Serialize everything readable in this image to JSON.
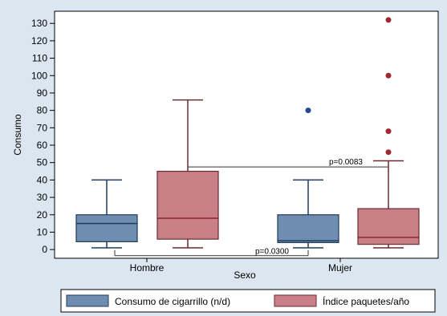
{
  "chart_data": {
    "type": "boxplot",
    "xlabel": "Sexo",
    "ylabel": "Consumo",
    "ylim": [
      -5,
      137
    ],
    "yticks": [
      0,
      10,
      20,
      30,
      40,
      50,
      60,
      70,
      80,
      90,
      100,
      110,
      120,
      130
    ],
    "categories": [
      "Hombre",
      "Mujer"
    ],
    "series": [
      {
        "name": "Consumo de cigarrillo (n/d)",
        "color": "#6f8db0",
        "boxes": [
          {
            "category": "Hombre",
            "min": 1,
            "q1": 4.5,
            "median": 15,
            "q3": 20,
            "max": 40,
            "outliers": []
          },
          {
            "category": "Mujer",
            "min": 1,
            "q1": 4,
            "median": 5,
            "q3": 20,
            "max": 40,
            "outliers": [
              80
            ]
          }
        ]
      },
      {
        "name": "Índice paquetes/año",
        "color": "#c97f86",
        "boxes": [
          {
            "category": "Hombre",
            "min": 1,
            "q1": 6,
            "median": 18,
            "q3": 45,
            "max": 86,
            "outliers": []
          },
          {
            "category": "Mujer",
            "min": 1,
            "q1": 3,
            "median": 7,
            "q3": 23.5,
            "max": 51,
            "outliers": [
              56,
              68,
              100,
              132
            ]
          }
        ]
      }
    ],
    "annotations": [
      {
        "text": "p=0.0083",
        "compares": "Índice paquetes/año Hombre vs Mujer",
        "y": 47.5
      },
      {
        "text": "p=0.0300",
        "compares": "Consumo de cigarrillo (n/d) Hombre vs Mujer",
        "y": -3.5
      }
    ],
    "legend": "bottom"
  }
}
